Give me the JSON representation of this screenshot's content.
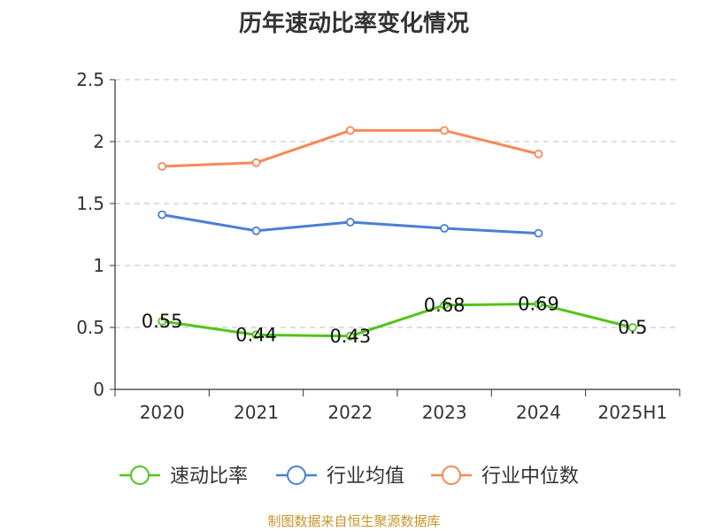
{
  "title": "历年速动比率变化情况",
  "source_text": "制图数据来自恒生聚源数据库",
  "chart_data": {
    "type": "line",
    "title": "历年速动比率变化情况",
    "categories": [
      "2020",
      "2021",
      "2022",
      "2023",
      "2024",
      "2025H1"
    ],
    "ylim": [
      0,
      2.5
    ],
    "yticks": [
      "0",
      "0.5",
      "1",
      "1.5",
      "2",
      "2.5"
    ],
    "grid": true,
    "legend_position": "bottom",
    "series": [
      {
        "name": "速动比率",
        "color": "#52c41a",
        "values": [
          0.55,
          0.44,
          0.43,
          0.68,
          0.69,
          0.5
        ],
        "labels": [
          "0.55",
          "0.44",
          "0.43",
          "0.68",
          "0.69",
          "0.5"
        ]
      },
      {
        "name": "行业均值",
        "color": "#4a7fd6",
        "values": [
          1.41,
          1.28,
          1.35,
          1.3,
          1.26,
          null
        ]
      },
      {
        "name": "行业中位数",
        "color": "#f5895a",
        "values": [
          1.8,
          1.83,
          2.09,
          2.09,
          1.9,
          null
        ]
      }
    ]
  }
}
